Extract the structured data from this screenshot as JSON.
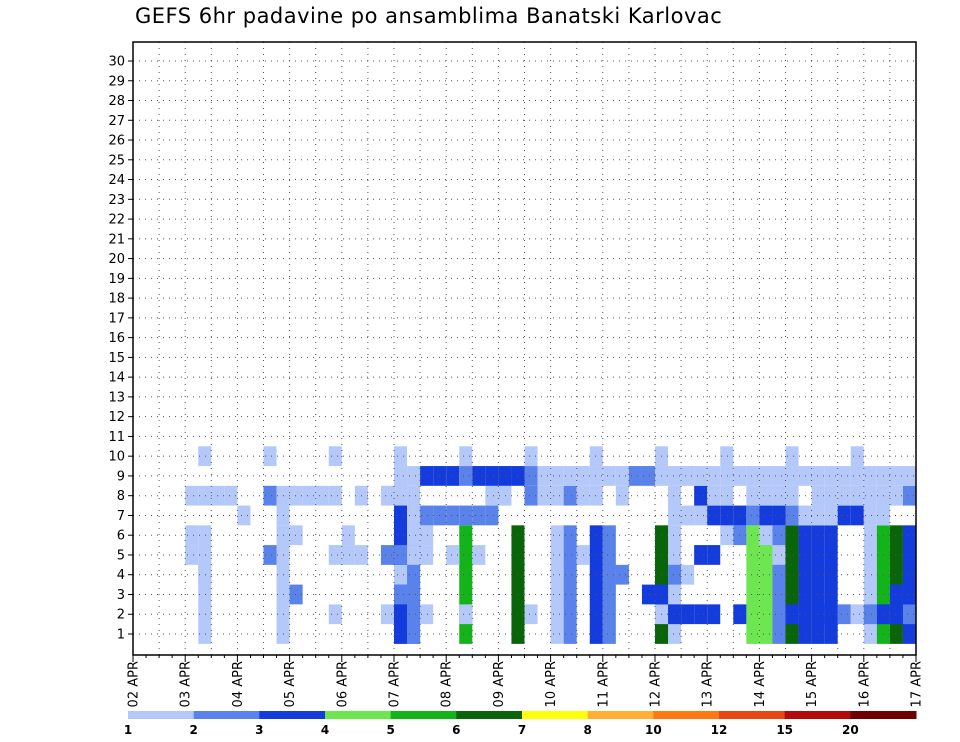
{
  "title": "GEFS 6hr padavine po ansamblima Banatski Karlovac",
  "chart_data": {
    "type": "heatmap",
    "title": "GEFS 6hr padavine po ansamblima Banatski Karlovac",
    "y_tick_labels": [
      "1",
      "2",
      "3",
      "4",
      "5",
      "6",
      "7",
      "8",
      "9",
      "10",
      "11",
      "12",
      "13",
      "14",
      "15",
      "16",
      "17",
      "18",
      "19",
      "20",
      "21",
      "22",
      "23",
      "24",
      "25",
      "26",
      "27",
      "28",
      "29",
      "30"
    ],
    "x_tick_labels": [
      "02 APR",
      "03 APR",
      "04 APR",
      "05 APR",
      "06 APR",
      "07 APR",
      "08 APR",
      "09 APR",
      "10 APR",
      "11 APR",
      "12 APR",
      "13 APR",
      "14 APR",
      "15 APR",
      "16 APR",
      "17 APR"
    ],
    "steps_per_day": 4,
    "total_steps": 60,
    "grid": true,
    "colorbar": {
      "boundaries": [
        "1",
        "2",
        "3",
        "4",
        "5",
        "6",
        "7",
        "8",
        "10",
        "12",
        "15",
        "20"
      ],
      "colors": [
        "#b4c8fa",
        "#5a82eb",
        "#143cdc",
        "#6ee650",
        "#12b41a",
        "#0a640a",
        "#ffff0a",
        "#ffaf32",
        "#ff7814",
        "#e64614",
        "#b40a0a",
        "#6e0000"
      ]
    },
    "cells": [
      [
        1,
        5,
        6,
        1
      ],
      [
        1,
        11,
        6,
        1
      ],
      [
        1,
        20,
        6,
        1
      ],
      [
        1,
        20,
        8,
        3
      ],
      [
        1,
        21,
        6,
        2
      ],
      [
        1,
        21,
        5,
        2
      ],
      [
        1,
        25,
        6,
        5
      ],
      [
        1,
        29,
        6,
        6
      ],
      [
        1,
        32,
        6,
        1
      ],
      [
        1,
        33,
        6,
        2
      ],
      [
        1,
        35,
        6,
        3
      ],
      [
        1,
        36,
        6,
        2
      ],
      [
        1,
        41,
        6,
        1
      ],
      [
        1,
        40,
        6,
        6
      ],
      [
        1,
        47,
        6,
        4
      ],
      [
        1,
        48,
        6,
        4
      ],
      [
        1,
        49,
        6,
        2
      ],
      [
        1,
        50,
        6,
        6
      ],
      [
        1,
        51,
        6,
        3
      ],
      [
        1,
        52,
        6,
        3
      ],
      [
        1,
        53,
        6,
        3
      ],
      [
        1,
        56,
        6,
        1
      ],
      [
        1,
        57,
        6,
        5
      ],
      [
        1,
        58,
        6,
        6
      ],
      [
        1,
        59,
        6,
        3
      ],
      [
        2,
        15,
        1,
        1
      ],
      [
        2,
        19,
        1,
        1
      ],
      [
        2,
        22,
        1,
        1
      ],
      [
        2,
        25,
        1,
        1
      ],
      [
        2,
        30,
        1,
        1
      ],
      [
        2,
        40,
        1,
        1
      ],
      [
        2,
        41,
        1,
        3
      ],
      [
        2,
        42,
        1,
        3
      ],
      [
        2,
        43,
        1,
        3
      ],
      [
        2,
        44,
        1,
        3
      ],
      [
        2,
        46,
        1,
        3
      ],
      [
        2,
        50,
        1,
        3
      ],
      [
        2,
        53,
        1,
        3
      ],
      [
        2,
        54,
        1,
        2
      ],
      [
        2,
        55,
        1,
        1
      ],
      [
        2,
        56,
        1,
        2
      ],
      [
        2,
        57,
        1,
        3
      ],
      [
        2,
        58,
        1,
        3
      ],
      [
        2,
        59,
        1,
        2
      ],
      [
        3,
        12,
        1,
        2
      ],
      [
        3,
        20,
        1,
        2
      ],
      [
        3,
        39,
        1,
        3
      ],
      [
        3,
        40,
        1,
        3
      ],
      [
        3,
        58,
        1,
        3
      ],
      [
        3,
        59,
        1,
        3
      ],
      [
        4,
        5,
        1,
        1
      ],
      [
        4,
        20,
        1,
        1
      ],
      [
        4,
        36,
        1,
        2
      ],
      [
        4,
        37,
        1,
        2
      ],
      [
        4,
        41,
        1,
        2
      ],
      [
        4,
        42,
        1,
        1
      ],
      [
        5,
        4,
        1,
        1
      ],
      [
        5,
        10,
        1,
        2
      ],
      [
        5,
        15,
        1,
        1
      ],
      [
        5,
        16,
        1,
        1
      ],
      [
        5,
        17,
        1,
        1
      ],
      [
        5,
        19,
        1,
        2
      ],
      [
        5,
        20,
        1,
        2
      ],
      [
        5,
        21,
        1,
        1
      ],
      [
        5,
        22,
        1,
        1
      ],
      [
        5,
        24,
        1,
        1
      ],
      [
        5,
        26,
        1,
        1
      ],
      [
        5,
        34,
        1,
        1
      ],
      [
        5,
        43,
        1,
        3
      ],
      [
        5,
        44,
        1,
        3
      ],
      [
        5,
        49,
        1,
        1
      ],
      [
        6,
        4,
        1,
        1
      ],
      [
        6,
        12,
        1,
        1
      ],
      [
        6,
        16,
        1,
        1
      ],
      [
        6,
        21,
        1,
        1
      ],
      [
        6,
        22,
        1,
        1
      ],
      [
        6,
        45,
        1,
        1
      ],
      [
        6,
        46,
        1,
        2
      ],
      [
        6,
        48,
        1,
        1
      ],
      [
        7,
        8,
        1,
        1
      ],
      [
        7,
        11,
        1,
        1
      ],
      [
        7,
        21,
        1,
        1
      ],
      [
        7,
        22,
        1,
        2
      ],
      [
        7,
        23,
        1,
        2
      ],
      [
        7,
        24,
        1,
        2
      ],
      [
        7,
        25,
        1,
        2
      ],
      [
        7,
        26,
        1,
        2
      ],
      [
        7,
        27,
        1,
        2
      ],
      [
        7,
        41,
        1,
        1
      ],
      [
        7,
        42,
        1,
        1
      ],
      [
        7,
        43,
        1,
        1
      ],
      [
        7,
        44,
        1,
        3
      ],
      [
        7,
        45,
        1,
        3
      ],
      [
        7,
        46,
        1,
        3
      ],
      [
        7,
        47,
        1,
        2
      ],
      [
        7,
        48,
        1,
        3
      ],
      [
        7,
        49,
        1,
        3
      ],
      [
        7,
        50,
        1,
        2
      ],
      [
        7,
        51,
        1,
        1
      ],
      [
        7,
        52,
        1,
        1
      ],
      [
        7,
        53,
        1,
        1
      ],
      [
        7,
        54,
        1,
        3
      ],
      [
        7,
        55,
        1,
        3
      ],
      [
        7,
        56,
        1,
        1
      ],
      [
        7,
        57,
        1,
        1
      ],
      [
        8,
        4,
        1,
        1
      ],
      [
        8,
        5,
        1,
        1
      ],
      [
        8,
        6,
        1,
        1
      ],
      [
        8,
        7,
        1,
        1
      ],
      [
        8,
        10,
        1,
        2
      ],
      [
        8,
        11,
        1,
        1
      ],
      [
        8,
        12,
        1,
        1
      ],
      [
        8,
        13,
        1,
        1
      ],
      [
        8,
        14,
        1,
        1
      ],
      [
        8,
        15,
        1,
        1
      ],
      [
        8,
        17,
        1,
        1
      ],
      [
        8,
        19,
        1,
        1
      ],
      [
        8,
        20,
        1,
        1
      ],
      [
        8,
        21,
        1,
        1
      ],
      [
        8,
        27,
        1,
        1
      ],
      [
        8,
        28,
        1,
        1
      ],
      [
        8,
        30,
        1,
        2
      ],
      [
        8,
        31,
        1,
        1
      ],
      [
        8,
        32,
        1,
        1
      ],
      [
        8,
        33,
        1,
        2
      ],
      [
        8,
        34,
        1,
        1
      ],
      [
        8,
        35,
        1,
        1
      ],
      [
        8,
        37,
        1,
        1
      ],
      [
        8,
        41,
        1,
        1
      ],
      [
        8,
        43,
        1,
        3
      ],
      [
        8,
        44,
        1,
        1
      ],
      [
        8,
        45,
        1,
        1
      ],
      [
        8,
        47,
        1,
        1
      ],
      [
        8,
        48,
        1,
        1
      ],
      [
        8,
        49,
        1,
        1
      ],
      [
        8,
        50,
        1,
        1
      ],
      [
        8,
        52,
        1,
        1
      ],
      [
        8,
        53,
        1,
        1
      ],
      [
        8,
        54,
        1,
        1
      ],
      [
        8,
        55,
        1,
        1
      ],
      [
        8,
        56,
        1,
        1
      ],
      [
        8,
        57,
        1,
        1
      ],
      [
        8,
        58,
        1,
        1
      ],
      [
        8,
        59,
        1,
        2
      ],
      [
        9,
        20,
        1,
        1
      ],
      [
        9,
        21,
        1,
        1
      ],
      [
        9,
        22,
        1,
        3
      ],
      [
        9,
        23,
        1,
        3
      ],
      [
        9,
        24,
        1,
        3
      ],
      [
        9,
        25,
        1,
        2
      ],
      [
        9,
        26,
        1,
        3
      ],
      [
        9,
        27,
        1,
        3
      ],
      [
        9,
        28,
        1,
        3
      ],
      [
        9,
        29,
        1,
        3
      ],
      [
        9,
        30,
        1,
        2
      ],
      [
        9,
        31,
        1,
        1
      ],
      [
        9,
        32,
        1,
        1
      ],
      [
        9,
        33,
        1,
        1
      ],
      [
        9,
        34,
        1,
        1
      ],
      [
        9,
        35,
        1,
        1
      ],
      [
        9,
        36,
        1,
        1
      ],
      [
        9,
        37,
        1,
        1
      ],
      [
        9,
        38,
        1,
        2
      ],
      [
        9,
        39,
        1,
        2
      ],
      [
        9,
        40,
        1,
        1
      ],
      [
        9,
        41,
        1,
        1
      ],
      [
        9,
        42,
        1,
        1
      ],
      [
        9,
        43,
        1,
        1
      ],
      [
        9,
        44,
        1,
        1
      ],
      [
        9,
        45,
        1,
        1
      ],
      [
        9,
        46,
        1,
        1
      ],
      [
        9,
        47,
        1,
        1
      ],
      [
        9,
        48,
        1,
        1
      ],
      [
        9,
        49,
        1,
        1
      ],
      [
        9,
        50,
        1,
        1
      ],
      [
        9,
        51,
        1,
        1
      ],
      [
        9,
        52,
        1,
        1
      ],
      [
        9,
        53,
        1,
        1
      ],
      [
        9,
        54,
        1,
        1
      ],
      [
        9,
        55,
        1,
        1
      ],
      [
        9,
        56,
        1,
        1
      ],
      [
        9,
        57,
        1,
        1
      ],
      [
        9,
        58,
        1,
        1
      ],
      [
        9,
        59,
        1,
        1
      ],
      [
        10,
        5,
        1,
        1
      ],
      [
        10,
        10,
        1,
        1
      ],
      [
        10,
        15,
        1,
        1
      ],
      [
        10,
        20,
        1,
        1
      ],
      [
        10,
        25,
        1,
        1
      ],
      [
        10,
        30,
        1,
        1
      ],
      [
        10,
        35,
        1,
        1
      ],
      [
        10,
        40,
        1,
        1
      ],
      [
        10,
        45,
        1,
        1
      ],
      [
        10,
        50,
        1,
        1
      ],
      [
        10,
        55,
        1,
        1
      ]
    ]
  },
  "colorbar_labels": [
    "1",
    "2",
    "3",
    "4",
    "5",
    "6",
    "7",
    "8",
    "10",
    "12",
    "15",
    "20"
  ]
}
